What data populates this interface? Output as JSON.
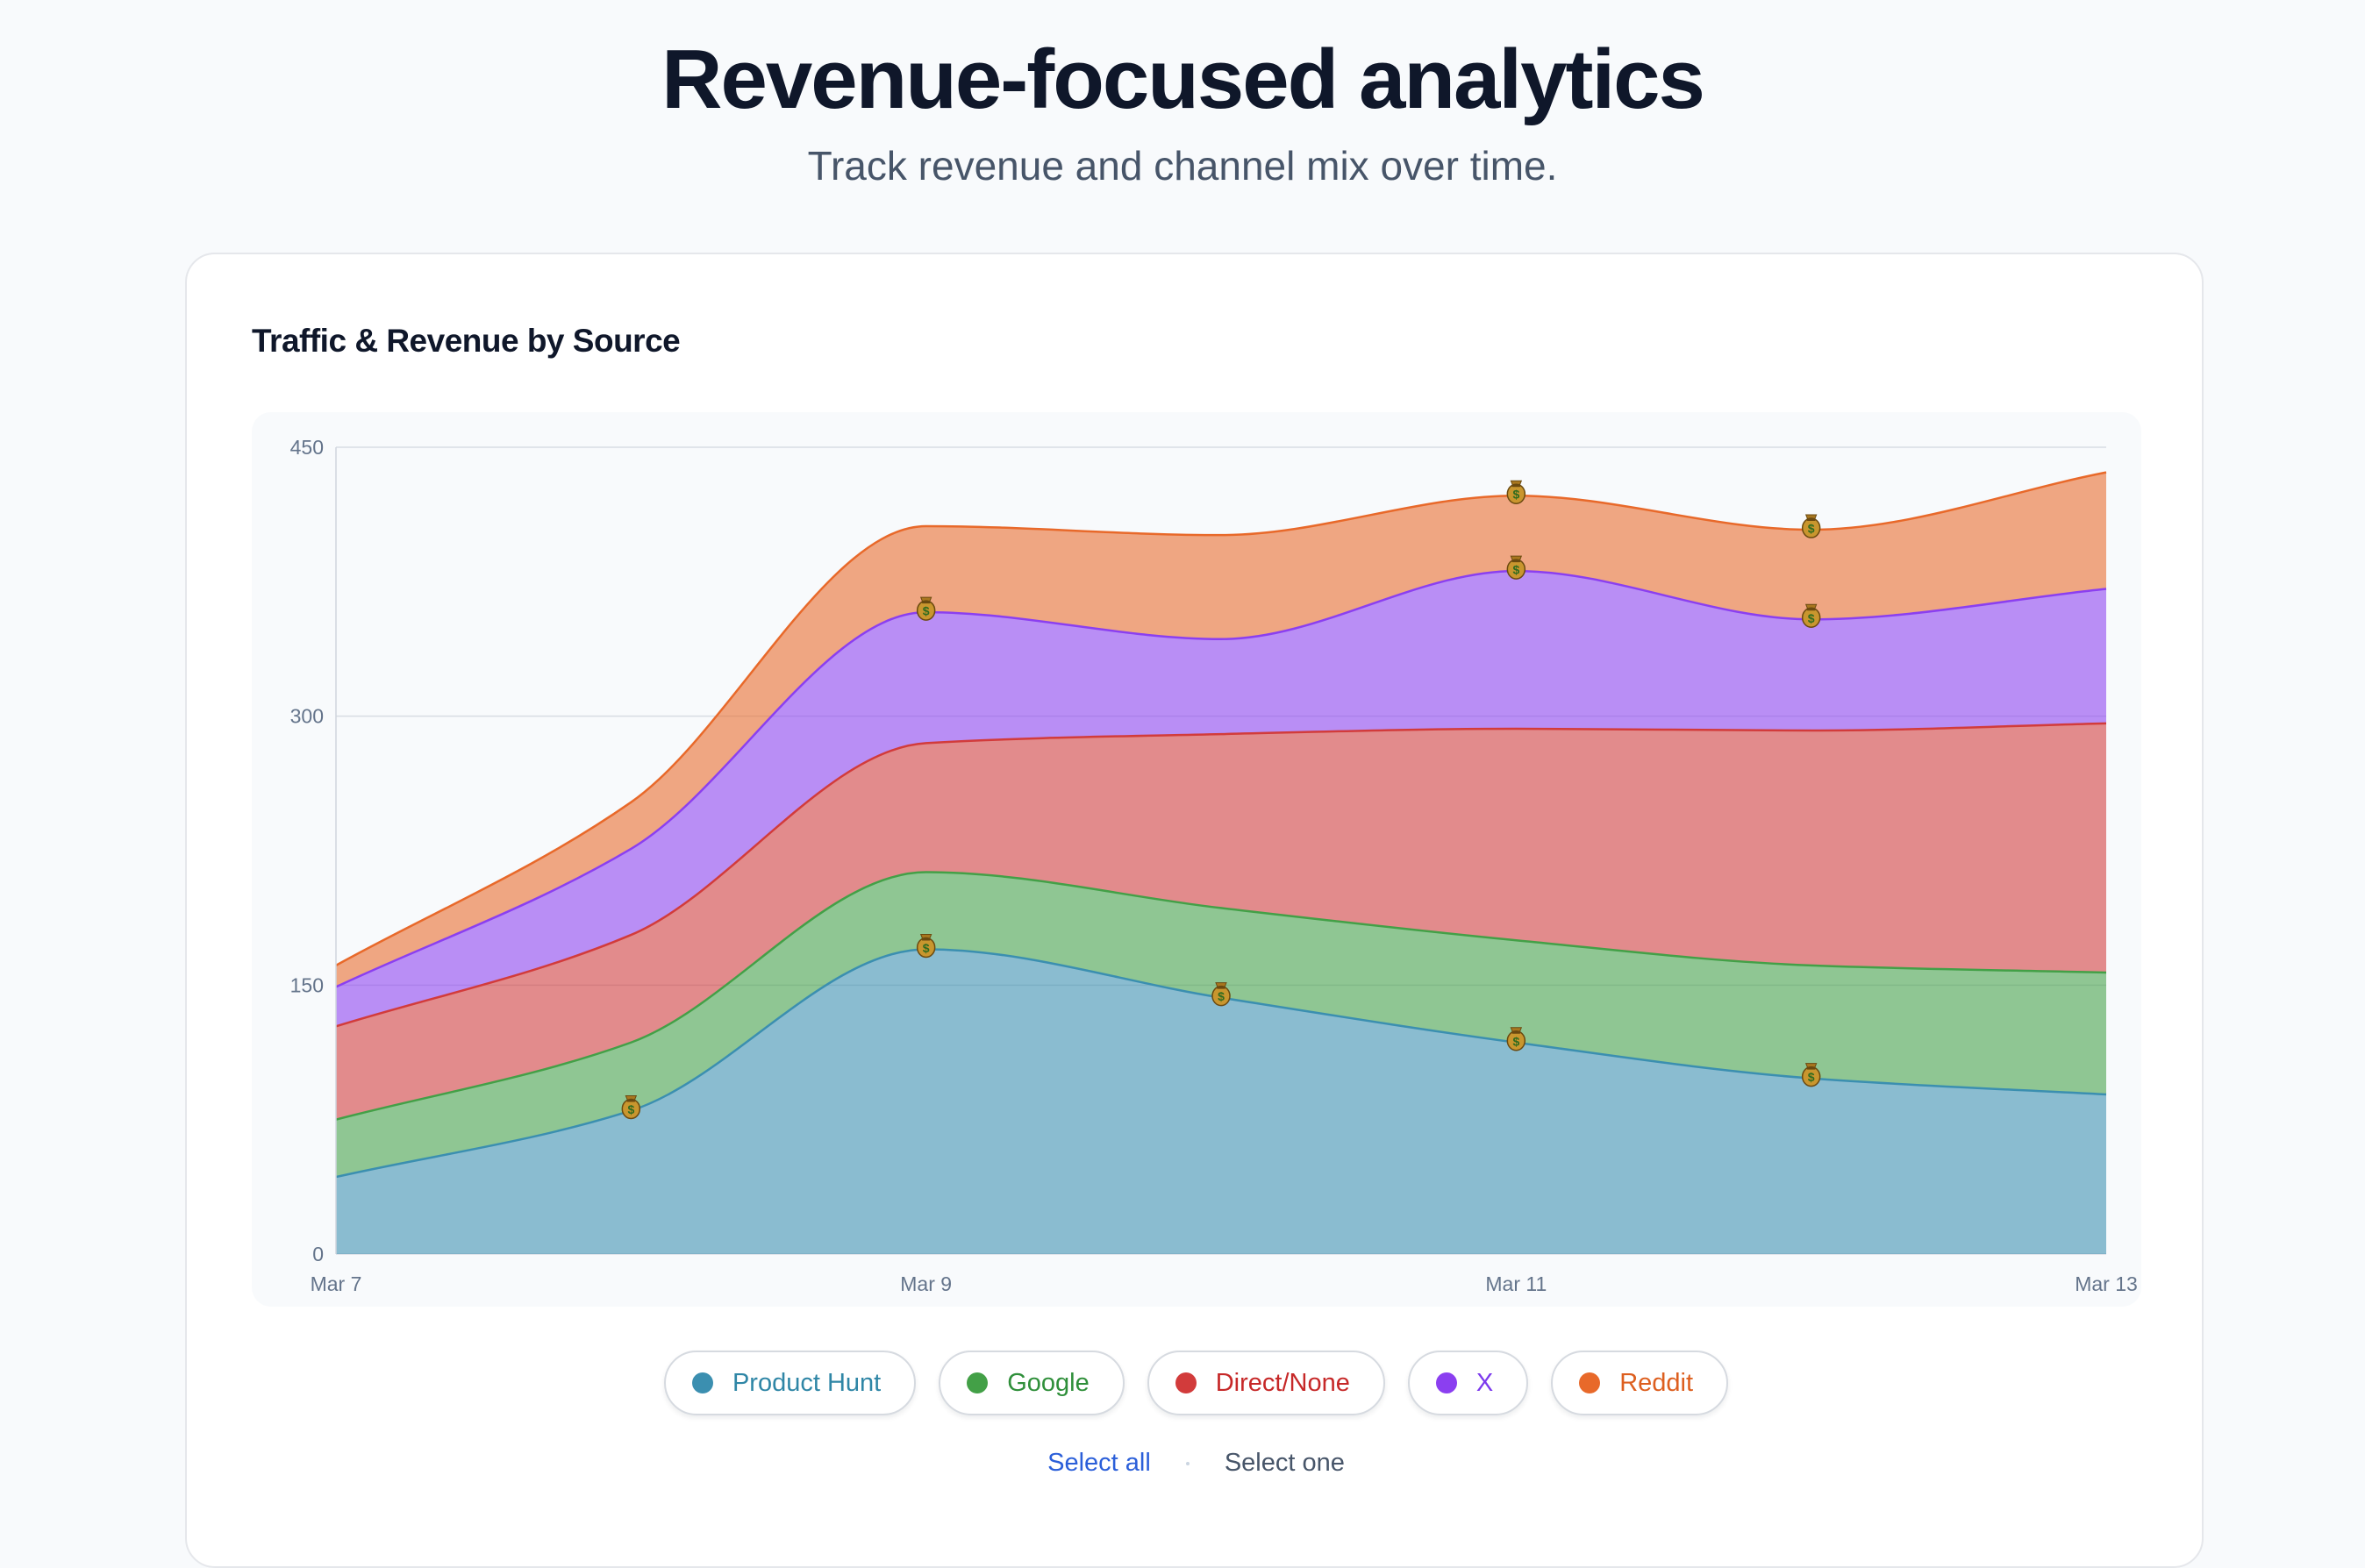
{
  "header": {
    "title": "Revenue-focused analytics",
    "subtitle": "Track revenue and channel mix over time."
  },
  "card": {
    "title": "Traffic & Revenue by Source"
  },
  "legend": {
    "items": [
      {
        "label": "Product Hunt",
        "color": "#3b8fb0",
        "text_color": "#2f86a6"
      },
      {
        "label": "Google",
        "color": "#43a047",
        "text_color": "#2f8f3a"
      },
      {
        "label": "Direct/None",
        "color": "#d23b3b",
        "text_color": "#c62828"
      },
      {
        "label": "X",
        "color": "#8b3ff0",
        "text_color": "#7c3aed"
      },
      {
        "label": "Reddit",
        "color": "#e8692a",
        "text_color": "#dd5f1f"
      }
    ],
    "select_all": "Select all",
    "select_one": "Select one"
  },
  "chart_data": {
    "type": "area",
    "stacked": true,
    "title": "Traffic & Revenue by Source",
    "x_labels": [
      "Mar 7",
      "",
      "Mar 9",
      "",
      "Mar 11",
      "",
      "Mar 13"
    ],
    "x_tick_labels": [
      "Mar 7",
      "Mar 9",
      "Mar 11",
      "Mar 13"
    ],
    "ylim": [
      0,
      450
    ],
    "y_ticks": [
      0,
      150,
      300,
      450
    ],
    "grid": true,
    "legend_position": "bottom",
    "revenue_marker_icon": "money-bag-icon",
    "series": [
      {
        "name": "Product Hunt",
        "color": "#3b8fb0",
        "values": [
          43,
          80,
          170,
          143,
          118,
          98,
          89
        ],
        "revenue_markers": [
          1,
          2,
          3,
          4,
          5
        ]
      },
      {
        "name": "Google",
        "color": "#43a047",
        "values": [
          32,
          38,
          43,
          50,
          57,
          63,
          68
        ],
        "revenue_markers": []
      },
      {
        "name": "Direct/None",
        "color": "#d23b3b",
        "values": [
          52,
          60,
          72,
          97,
          118,
          131,
          139
        ],
        "revenue_markers": []
      },
      {
        "name": "X",
        "color": "#8b3ff0",
        "values": [
          22,
          48,
          73,
          53,
          88,
          62,
          75
        ],
        "revenue_markers": [
          2,
          4,
          5
        ]
      },
      {
        "name": "Reddit",
        "color": "#e8692a",
        "values": [
          12,
          26,
          48,
          58,
          42,
          50,
          65
        ],
        "revenue_markers": [
          4,
          5
        ]
      }
    ]
  }
}
